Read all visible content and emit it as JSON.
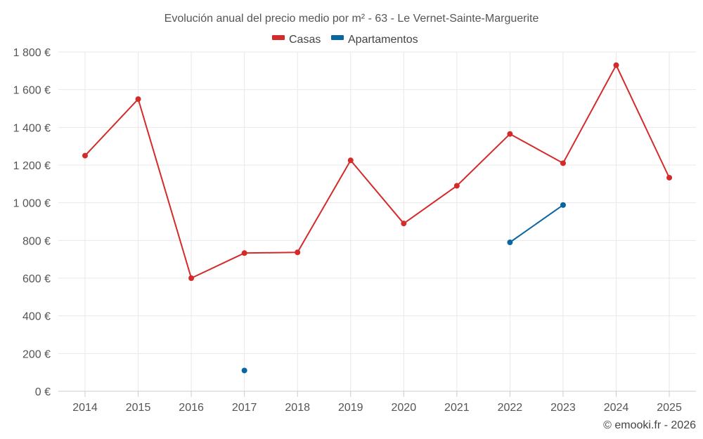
{
  "chart_data": {
    "type": "line",
    "title": "Evolución anual del precio medio por m² - 63 - Le Vernet-Sainte-Marguerite",
    "categories": [
      "2014",
      "2015",
      "2016",
      "2017",
      "2018",
      "2019",
      "2020",
      "2021",
      "2022",
      "2023",
      "2024",
      "2025"
    ],
    "series": [
      {
        "name": "Casas",
        "color": "#d42a2a",
        "values": [
          1250,
          1550,
          600,
          733,
          737,
          1225,
          890,
          1090,
          1365,
          1210,
          1730,
          1133
        ]
      },
      {
        "name": "Apartamentos",
        "color": "#0a66a0",
        "values": [
          null,
          null,
          null,
          110,
          null,
          null,
          null,
          null,
          790,
          988,
          null,
          null
        ]
      }
    ],
    "ylim": [
      0,
      1800
    ],
    "yticks": [
      0,
      200,
      400,
      600,
      800,
      1000,
      1200,
      1400,
      1600,
      1800
    ],
    "ytick_labels": [
      "0 €",
      "200 €",
      "400 €",
      "600 €",
      "800 €",
      "1 000 €",
      "1 200 €",
      "1 400 €",
      "1 600 €",
      "1 800 €"
    ],
    "xlabel": "",
    "ylabel": "",
    "legend_position": "top-center",
    "grid": true
  },
  "credit": "© emooki.fr - 2026"
}
